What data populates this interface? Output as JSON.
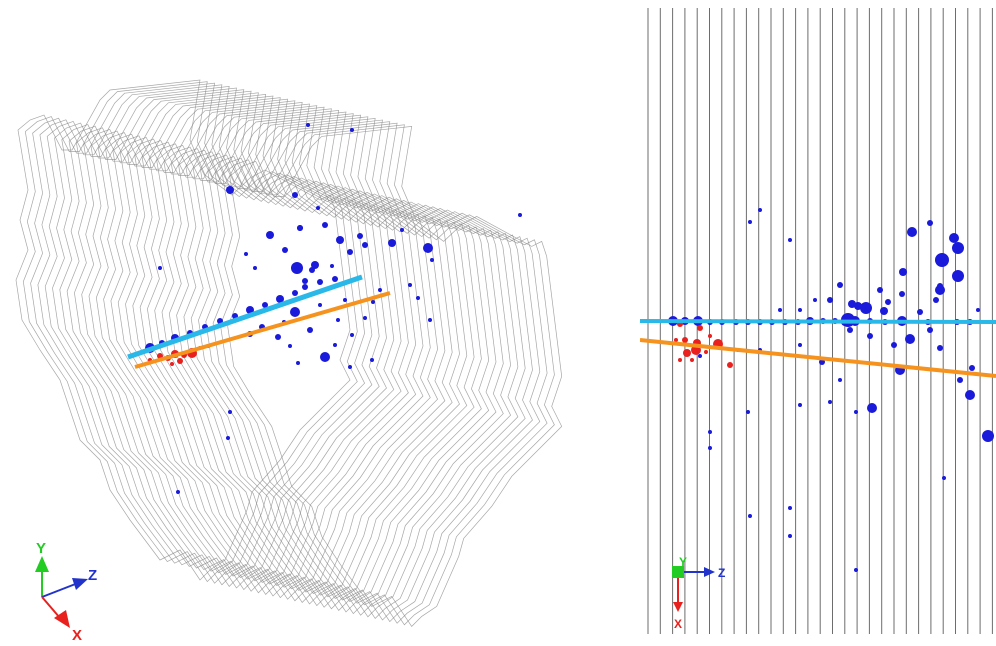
{
  "views": {
    "perspective": {
      "title": "",
      "axes": {
        "y": "Y",
        "z": "Z",
        "x": "X"
      },
      "colors": {
        "y": "#22cc22",
        "z": "#2233cc",
        "x": "#e8211e"
      },
      "detector_planes": 30
    },
    "top": {
      "axes": {
        "y": "Y",
        "z": "Z",
        "x": "X"
      },
      "colors": {
        "y": "#22cc22",
        "z": "#2233cc",
        "x": "#e8211e"
      },
      "wire_planes": 29
    }
  },
  "tracks": [
    {
      "name": "",
      "color": "#29b8e8"
    },
    {
      "name": "",
      "color": "#f5931e"
    }
  ],
  "hit_colors": {
    "primary": "#1a1adb",
    "secondary": "#e8211e"
  }
}
